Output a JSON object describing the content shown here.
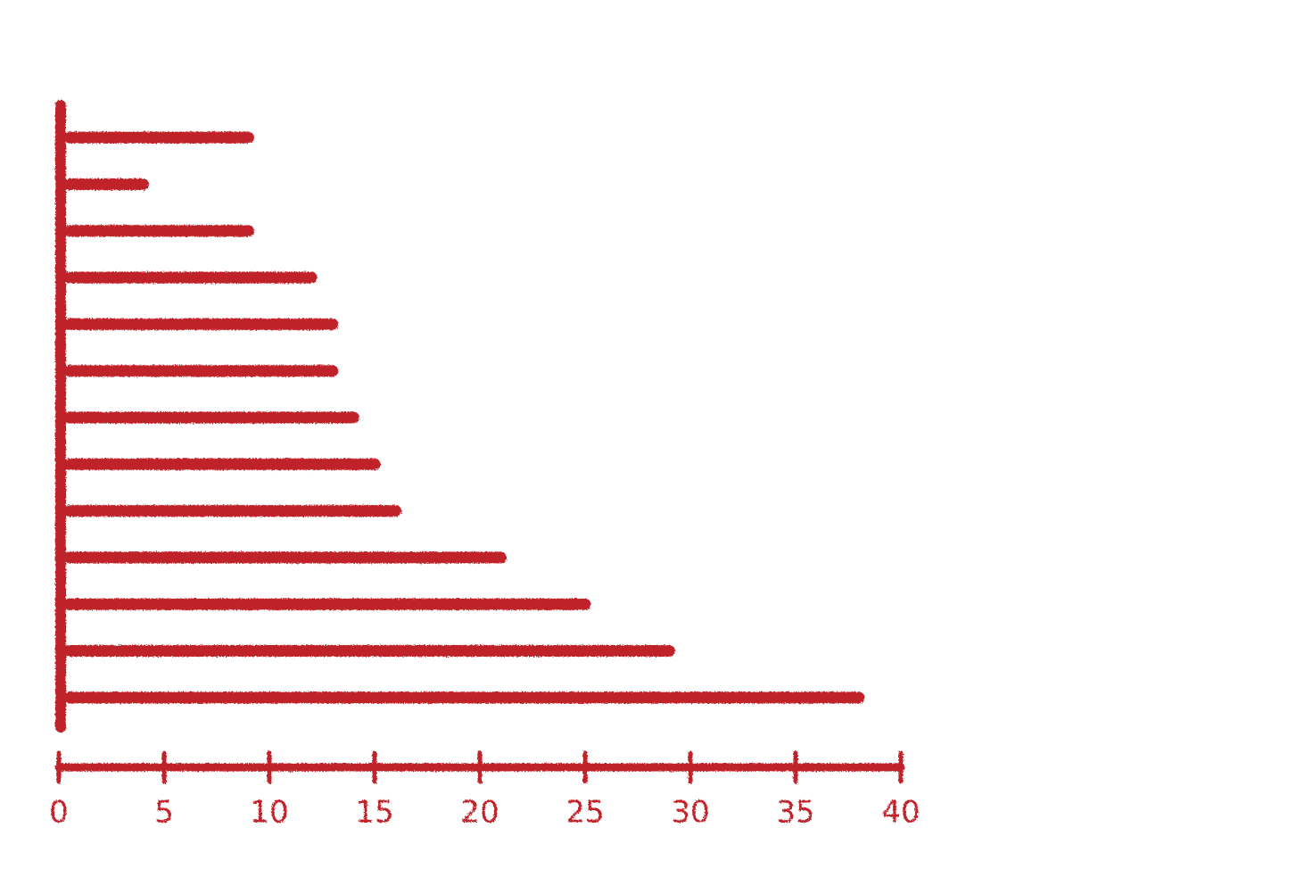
{
  "chart_data": {
    "type": "barh",
    "categories": [
      null,
      null,
      null,
      null,
      null,
      null,
      null,
      null,
      null,
      null,
      null,
      null,
      null
    ],
    "values": [
      9,
      4,
      9,
      12,
      13,
      13,
      14,
      15,
      16,
      21,
      25,
      29,
      38
    ],
    "color": "#c0202a",
    "xlim": [
      0,
      40
    ],
    "xticks": [
      0,
      5,
      10,
      15,
      20,
      25,
      30,
      35,
      40
    ],
    "grid": false
  }
}
